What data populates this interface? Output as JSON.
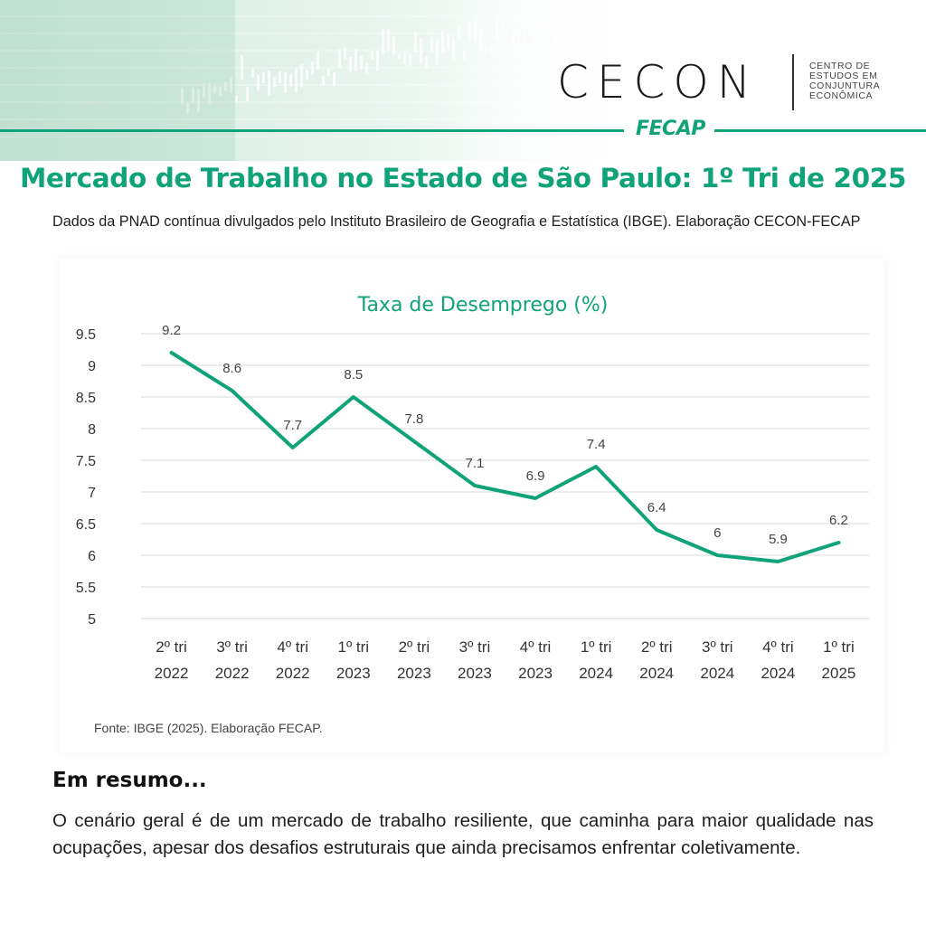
{
  "header": {
    "brand_name": "CECON",
    "brand_subtitle_lines": [
      "CENTRO DE",
      "ESTUDOS EM",
      "CONJUNTURA",
      "ECONÔMICA"
    ],
    "logo_text": "FECAP",
    "accent_color": "#10a37a"
  },
  "page": {
    "title": "Mercado de Trabalho no Estado de São Paulo: 1º Tri de 2025",
    "subtitle": "Dados da PNAD contínua divulgados pelo Instituto Brasileiro de Geografia e Estatística (IBGE). Elaboração CECON-FECAP"
  },
  "chart_data": {
    "type": "line",
    "title": "Taxa de Desemprego (%)",
    "categories": [
      [
        "2º tri",
        "2022"
      ],
      [
        "3º tri",
        "2022"
      ],
      [
        "4º tri",
        "2022"
      ],
      [
        "1º tri",
        "2023"
      ],
      [
        "2º tri",
        "2023"
      ],
      [
        "3º tri",
        "2023"
      ],
      [
        "4º tri",
        "2023"
      ],
      [
        "1º tri",
        "2024"
      ],
      [
        "2º tri",
        "2024"
      ],
      [
        "3º tri",
        "2024"
      ],
      [
        "4º tri",
        "2024"
      ],
      [
        "1º tri",
        "2025"
      ]
    ],
    "values": [
      9.2,
      8.6,
      7.7,
      8.5,
      7.8,
      7.1,
      6.9,
      7.4,
      6.4,
      6,
      5.9,
      6.2
    ],
    "value_labels": [
      "9.2",
      "8.6",
      "7.7",
      "8.5",
      "7.8",
      "7.1",
      "6.9",
      "7.4",
      "6.4",
      "6",
      "5.9",
      "6.2"
    ],
    "yticks": [
      "5",
      "5.5",
      "6",
      "6.5",
      "7",
      "7.5",
      "8",
      "8.5",
      "9",
      "9.5"
    ],
    "ylim": [
      5,
      9.5
    ],
    "grid": true,
    "line_color": "#10a37a",
    "source": "Fonte: IBGE (2025). Elaboração FECAP."
  },
  "summary": {
    "title": "Em resumo...",
    "text": "O cenário geral é de um mercado de trabalho resiliente, que caminha para maior qualidade nas ocupações, apesar dos desafios estruturais que ainda precisamos enfrentar coletivamente."
  }
}
